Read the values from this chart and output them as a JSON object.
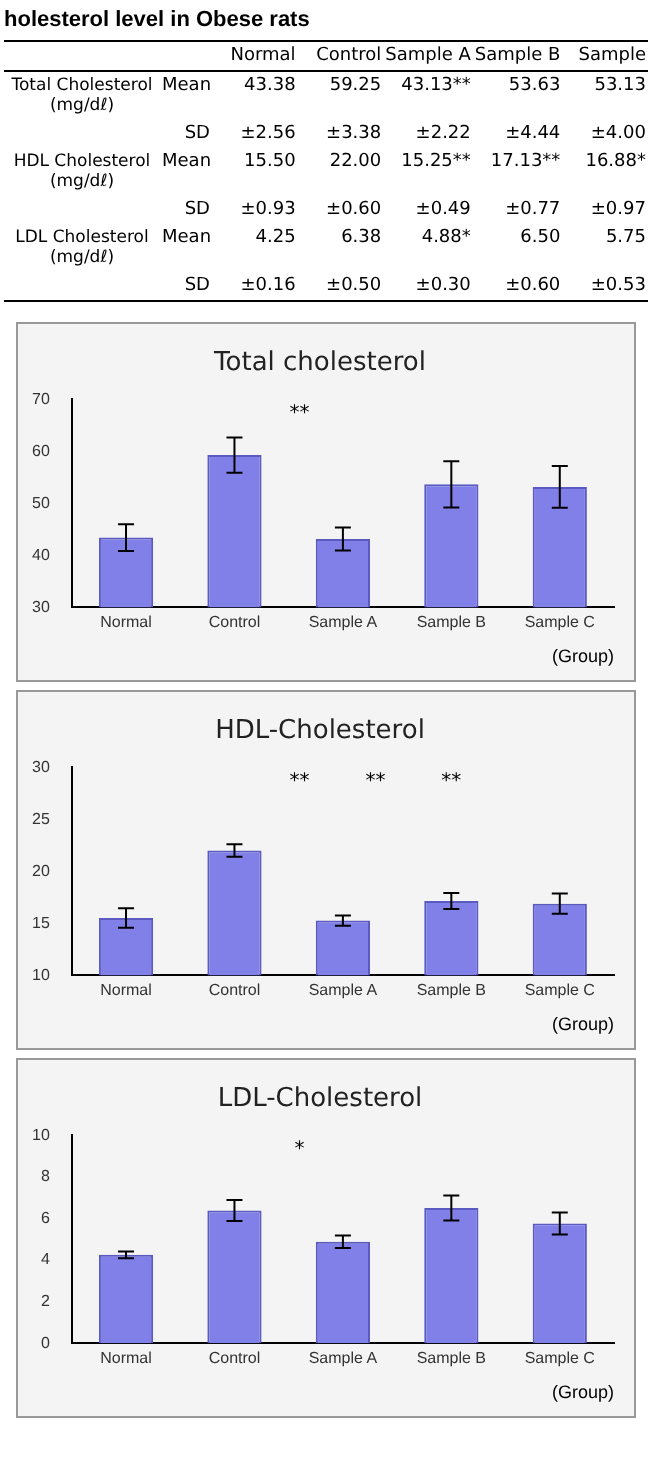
{
  "chart_data": [
    {
      "type": "other",
      "title": "holesterol level in Obese rats",
      "annotations": [
        "Normal",
        "Control",
        "Sample A",
        "Sample B",
        "Sample",
        "Total Cholesterol (mg/dℓ)",
        "Mean",
        "43.38",
        "59.25",
        "43.13**",
        "53.63",
        "53.13",
        "SD",
        "±2.56",
        "±3.38",
        "±2.22",
        "±4.44",
        "±4.00",
        "HDL Cholesterol (mg/dℓ)",
        "Mean",
        "15.50",
        "22.00",
        "15.25**",
        "17.13**",
        "16.88*",
        "SD",
        "±0.93",
        "±0.60",
        "±0.49",
        "±0.77",
        "±0.97",
        "LDL Cholesterol (mg/dℓ)",
        "Mean",
        "4.25",
        "6.38",
        "4.88*",
        "6.50",
        "5.75",
        "SD",
        "±0.16",
        "±0.50",
        "±0.30",
        "±0.60",
        "±0.53"
      ]
    },
    {
      "type": "bar",
      "title": "Total cholesterol",
      "xlabel": "(Group)",
      "categories": [
        "Normal",
        "Control",
        "Sample A",
        "Sample B",
        "Sample C"
      ],
      "values": [
        43.38,
        59.25,
        43.13,
        53.63,
        53.13
      ],
      "errors": [
        2.56,
        3.38,
        2.22,
        4.44,
        4.0
      ],
      "color": "#8080e8",
      "ylim": [
        30,
        70
      ],
      "yticks": [
        30,
        40,
        50,
        60,
        70
      ],
      "annotations": [
        "**"
      ]
    },
    {
      "type": "bar",
      "title": "HDL-Cholesterol",
      "xlabel": "(Group)",
      "categories": [
        "Normal",
        "Control",
        "Sample A",
        "Sample B",
        "Sample C"
      ],
      "values": [
        15.5,
        22.0,
        15.25,
        17.13,
        16.88
      ],
      "errors": [
        0.93,
        0.6,
        0.49,
        0.77,
        0.97
      ],
      "color": "#8080e8",
      "ylim": [
        10,
        30
      ],
      "yticks": [
        10,
        15,
        20,
        25,
        30
      ],
      "annotations": [
        "**",
        "**",
        "**"
      ]
    },
    {
      "type": "bar",
      "title": "LDL-Cholesterol",
      "xlabel": "(Group)",
      "categories": [
        "Normal",
        "Control",
        "Sample A",
        "Sample B",
        "Sample C"
      ],
      "values": [
        4.25,
        6.38,
        4.88,
        6.5,
        5.75
      ],
      "errors": [
        0.16,
        0.5,
        0.3,
        0.6,
        0.53
      ],
      "color": "#8080e8",
      "ylim": [
        0,
        10
      ],
      "yticks": [
        0,
        2,
        4,
        6,
        8,
        10
      ],
      "annotations": [
        "*"
      ]
    }
  ]
}
